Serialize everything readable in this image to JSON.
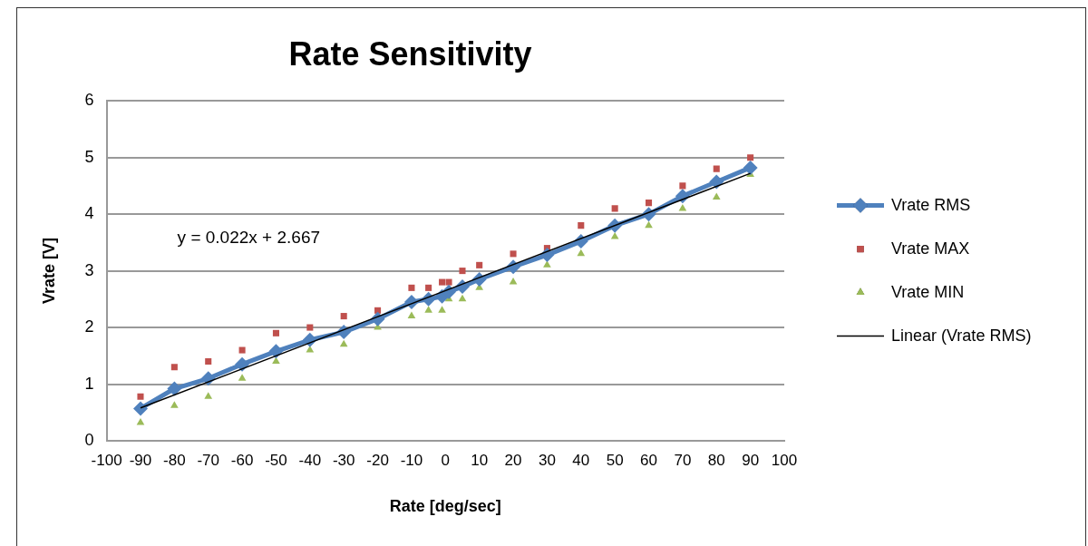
{
  "chart_data": {
    "type": "scatter",
    "title": "Rate Sensitivity",
    "xlabel": "Rate [deg/sec]",
    "ylabel": "Vrate [V]",
    "x": [
      -90,
      -80,
      -70,
      -60,
      -50,
      -40,
      -30,
      -20,
      -10,
      -5,
      -1,
      1,
      5,
      10,
      20,
      30,
      40,
      50,
      60,
      70,
      80,
      90
    ],
    "series": [
      {
        "name": "Vrate RMS",
        "type": "line",
        "marker": "diamond",
        "color": "#4f81bd",
        "values": [
          0.57,
          0.92,
          1.1,
          1.35,
          1.58,
          1.78,
          1.92,
          2.15,
          2.45,
          2.5,
          2.55,
          2.63,
          2.72,
          2.85,
          3.07,
          3.28,
          3.52,
          3.8,
          4.0,
          4.32,
          4.57,
          4.82
        ]
      },
      {
        "name": "Vrate MAX",
        "type": "scatter",
        "marker": "square",
        "color": "#c0504d",
        "values": [
          0.78,
          1.3,
          1.4,
          1.6,
          1.9,
          2.0,
          2.2,
          2.3,
          2.7,
          2.7,
          2.8,
          2.8,
          3.0,
          3.1,
          3.3,
          3.4,
          3.8,
          4.1,
          4.2,
          4.5,
          4.8,
          5.0
        ]
      },
      {
        "name": "Vrate MIN",
        "type": "scatter",
        "marker": "triangle",
        "color": "#9bbb59",
        "values": [
          0.32,
          0.62,
          0.78,
          1.1,
          1.4,
          1.6,
          1.7,
          2.0,
          2.2,
          2.3,
          2.3,
          2.5,
          2.5,
          2.7,
          2.8,
          3.1,
          3.3,
          3.6,
          3.8,
          4.1,
          4.3,
          4.7
        ]
      },
      {
        "name": "Linear (Vrate RMS)",
        "type": "line",
        "marker": "none",
        "color": "#000000",
        "x": [
          -90,
          90
        ],
        "values": [
          0.58,
          4.72
        ]
      }
    ],
    "xlim": [
      -100,
      100
    ],
    "xticks": [
      -100,
      -90,
      -80,
      -70,
      -60,
      -50,
      -40,
      -30,
      -20,
      -10,
      0,
      10,
      20,
      30,
      40,
      50,
      60,
      70,
      80,
      90,
      100
    ],
    "ylim": [
      0,
      6
    ],
    "yticks": [
      0,
      1,
      2,
      3,
      4,
      5,
      6
    ],
    "grid": "y",
    "legend": "right",
    "annotations": [
      "y = 0.022x + 2.667"
    ]
  }
}
